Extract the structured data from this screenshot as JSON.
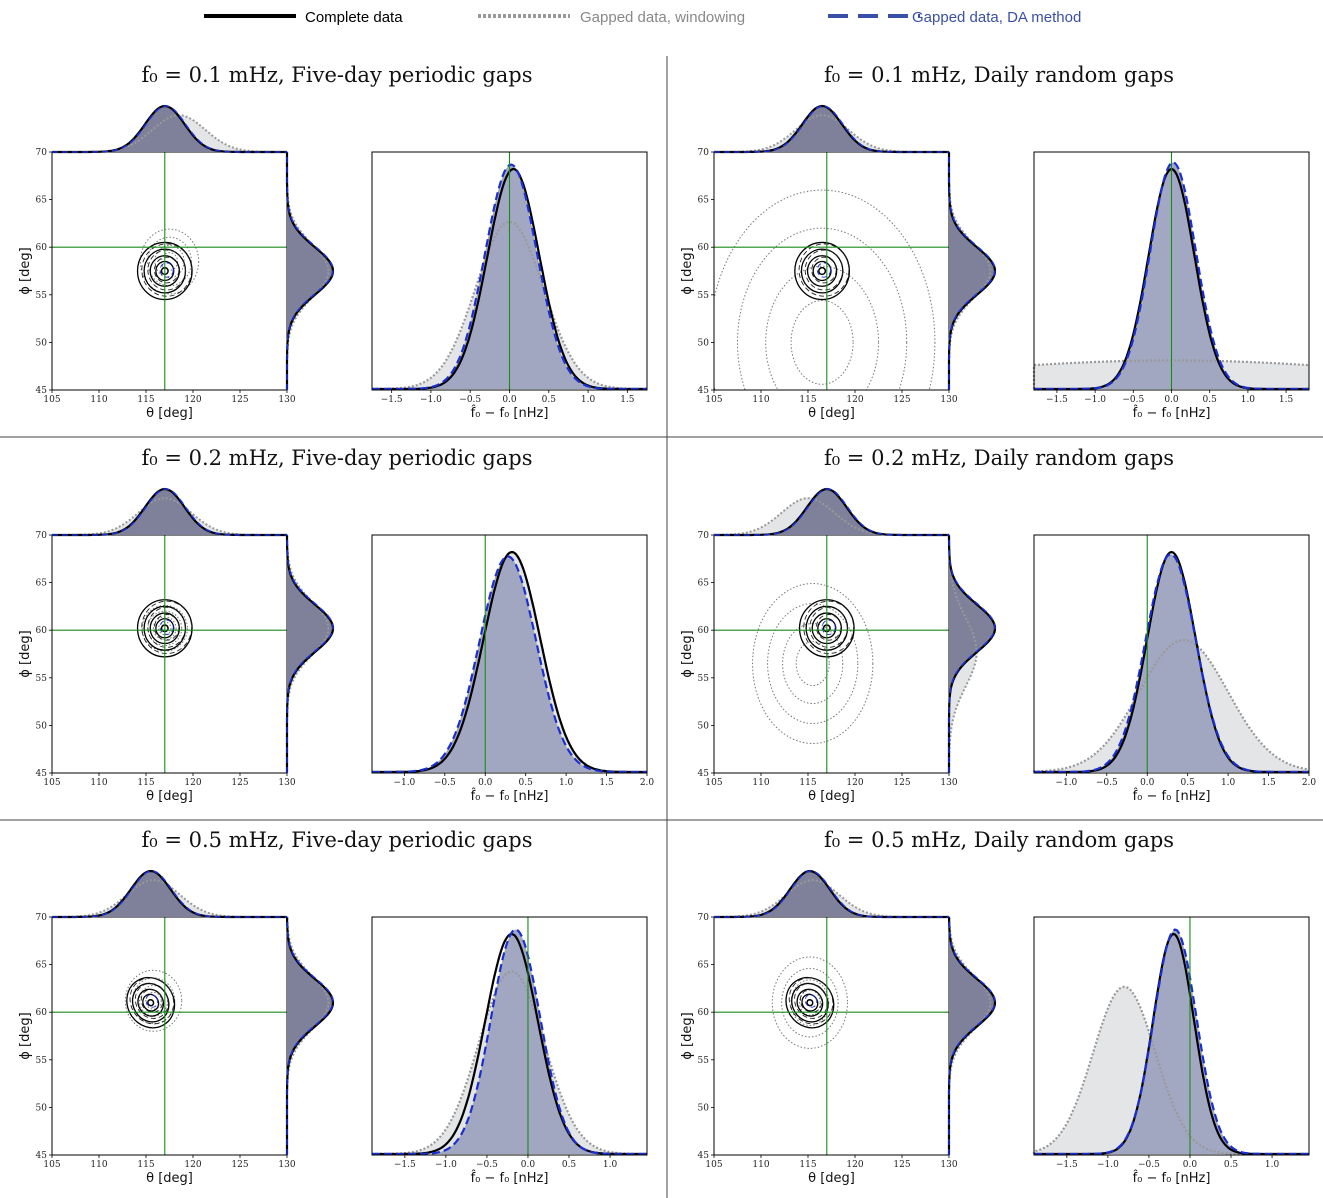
{
  "legend": [
    {
      "label": "Complete data",
      "color": "#000000",
      "style": "solid",
      "text_color": "#000000"
    },
    {
      "label": "Gapped data, windowing",
      "color": "#999999",
      "style": "dotted",
      "text_color": "#888888"
    },
    {
      "label": "Gapped data, DA method",
      "color": "#3a4fa8",
      "style": "dashed",
      "text_color": "#3a4fa8"
    }
  ],
  "colors": {
    "complete_fill": "#7f8099",
    "da_fill": "#9ea3bf",
    "window_fill": "#e4e5e7",
    "truth_line": "#1a8a1a",
    "da_line": "#1a2fd0"
  },
  "panels": [
    {
      "title": "f₀ = 0.1 mHz, Five-day periodic gaps",
      "center": [
        117,
        57.5
      ],
      "sky_window": {
        "center": [
          117.5,
          58.5
        ],
        "spread": [
          1.55,
          1.7
        ]
      },
      "marg_window_theta_shift": 1.5,
      "f_complete": {
        "mu": 0.05,
        "sigma": 0.33,
        "amp": 1.0
      },
      "f_da": {
        "mu": 0.02,
        "sigma": 0.33,
        "amp": 1.02
      },
      "f_window": {
        "mu": 0.0,
        "sigma": 0.43,
        "amp": 0.76
      },
      "f_xlim": [
        -1.75,
        1.75
      ],
      "f_xticks": [
        -1.5,
        -1.0,
        -0.5,
        0.0,
        0.5,
        1.0,
        1.5
      ]
    },
    {
      "title": "f₀ = 0.1 mHz, Daily random gaps",
      "center": [
        116.5,
        57.5
      ],
      "sky_window": {
        "center": [
          116.5,
          50.0
        ],
        "spread": [
          6.0,
          8.0
        ]
      },
      "marg_window_theta_shift": 0.0,
      "f_complete": {
        "mu": 0.0,
        "sigma": 0.3,
        "amp": 1.0
      },
      "f_da": {
        "mu": 0.02,
        "sigma": 0.3,
        "amp": 1.03
      },
      "f_window": {
        "mu": 0.0,
        "sigma": 3.0,
        "amp": 0.13
      },
      "f_xlim": [
        -1.8,
        1.8
      ],
      "f_xticks": [
        -1.5,
        -1.0,
        -0.5,
        0.0,
        0.5,
        1.0,
        1.5
      ]
    },
    {
      "title": "f₀ = 0.2 mHz, Five-day periodic gaps",
      "center": [
        117,
        60.2
      ],
      "sky_window": {
        "center": [
          117,
          60.2
        ],
        "spread": [
          1.2,
          1.2
        ]
      },
      "marg_window_theta_shift": 0.0,
      "f_complete": {
        "mu": 0.33,
        "sigma": 0.35,
        "amp": 1.0
      },
      "f_da": {
        "mu": 0.28,
        "sigma": 0.35,
        "amp": 0.98
      },
      "f_window": {
        "mu": 0.33,
        "sigma": 0.35,
        "amp": 1.0
      },
      "f_xlim": [
        -1.4,
        2.0
      ],
      "f_xticks": [
        -1.0,
        -0.5,
        0.0,
        0.5,
        1.0,
        1.5,
        2.0
      ]
    },
    {
      "title": "f₀ = 0.2 mHz, Daily random gaps",
      "center": [
        117,
        60.2
      ],
      "sky_window": {
        "center": [
          115.5,
          56.5
        ],
        "spread": [
          3.2,
          4.2
        ]
      },
      "marg_window_theta_shift": -2.0,
      "f_complete": {
        "mu": 0.3,
        "sigma": 0.3,
        "amp": 1.0
      },
      "f_da": {
        "mu": 0.29,
        "sigma": 0.31,
        "amp": 0.99
      },
      "f_window": {
        "mu": 0.45,
        "sigma": 0.55,
        "amp": 0.6
      },
      "f_xlim": [
        -1.4,
        2.0
      ],
      "f_xticks": [
        -1.0,
        -0.5,
        0.0,
        0.5,
        1.0,
        1.5,
        2.0
      ]
    },
    {
      "title": "f₀ = 0.5 mHz, Five-day periodic gaps",
      "center": [
        115.5,
        61.0
      ],
      "sky_window": {
        "center": [
          115.8,
          61.2
        ],
        "spread": [
          1.5,
          1.6
        ]
      },
      "marg_window_theta_shift": 0.3,
      "f_complete": {
        "mu": -0.2,
        "sigma": 0.32,
        "amp": 1.0
      },
      "f_da": {
        "mu": -0.15,
        "sigma": 0.3,
        "amp": 1.02
      },
      "f_window": {
        "mu": -0.2,
        "sigma": 0.4,
        "amp": 0.83
      },
      "f_xlim": [
        -1.9,
        1.45
      ],
      "f_xticks": [
        -1.5,
        -1.0,
        -0.5,
        0.0,
        0.5,
        1.0
      ]
    },
    {
      "title": "f₀ = 0.5 mHz, Daily random gaps",
      "center": [
        115.2,
        61.0
      ],
      "sky_window": {
        "center": [
          115.2,
          61.0
        ],
        "spread": [
          2.0,
          2.4
        ]
      },
      "marg_window_theta_shift": 0.3,
      "f_complete": {
        "mu": -0.2,
        "sigma": 0.25,
        "amp": 1.0
      },
      "f_da": {
        "mu": -0.18,
        "sigma": 0.26,
        "amp": 1.02
      },
      "f_window": {
        "mu": -0.8,
        "sigma": 0.38,
        "amp": 0.76
      },
      "f_xlim": [
        -1.9,
        1.45
      ],
      "f_xticks": [
        -1.5,
        -1.0,
        -0.5,
        0.0,
        0.5,
        1.0
      ]
    }
  ],
  "sky_axes": {
    "xlabel": "θ [deg]",
    "ylabel": "ϕ [deg]",
    "xlim": [
      105,
      130
    ],
    "ylim": [
      45,
      70
    ],
    "xticks": [
      105,
      110,
      115,
      120,
      125,
      130
    ],
    "yticks": [
      45,
      50,
      55,
      60,
      65,
      70
    ],
    "truth": [
      117,
      60
    ]
  },
  "freq_axes": {
    "xlabel": "f̂₀ − f₀ [nHz]"
  },
  "chart_data": {
    "type": "corner",
    "series": [
      {
        "name": "Complete data"
      },
      {
        "name": "Gapped data, windowing"
      },
      {
        "name": "Gapped data, DA method"
      }
    ]
  }
}
